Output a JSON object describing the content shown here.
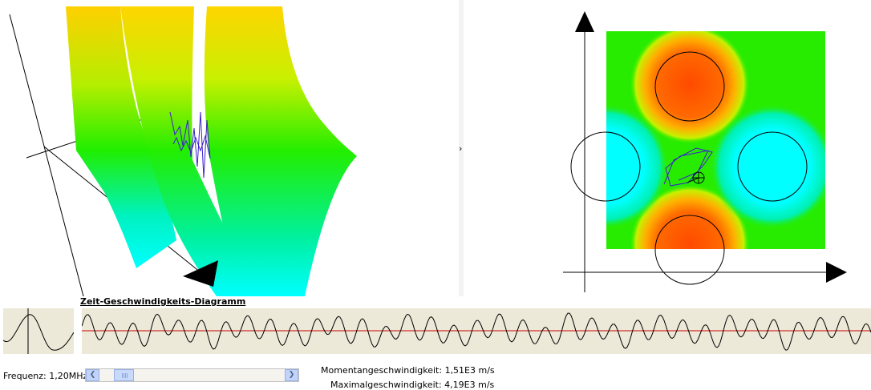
{
  "diagram": {
    "title": "Zeit-Geschwindigkeits-Diagramm"
  },
  "splitter": {
    "arrow": "›"
  },
  "controls": {
    "frequency_label": "Frequenz: 1,20MHz",
    "frequency_slider_value": 0.15,
    "scroll_left_icon": "chevron-left-icon",
    "scroll_right_icon": "chevron-right-icon"
  },
  "readouts": {
    "momentary": "Momentangeschwindigkeit: 1,51E3 m/s",
    "maximum": "Maximalgeschwindigkeit: 4,19E3 m/s"
  },
  "colors": {
    "wave_line": "#000000",
    "zero_line": "#cc0000",
    "panel_bg": "#ece9d8",
    "trajectory": "#3a1fd0",
    "potential_high": "#ff4500",
    "potential_low": "#00ffff",
    "potential_mid": "#00e000"
  }
}
